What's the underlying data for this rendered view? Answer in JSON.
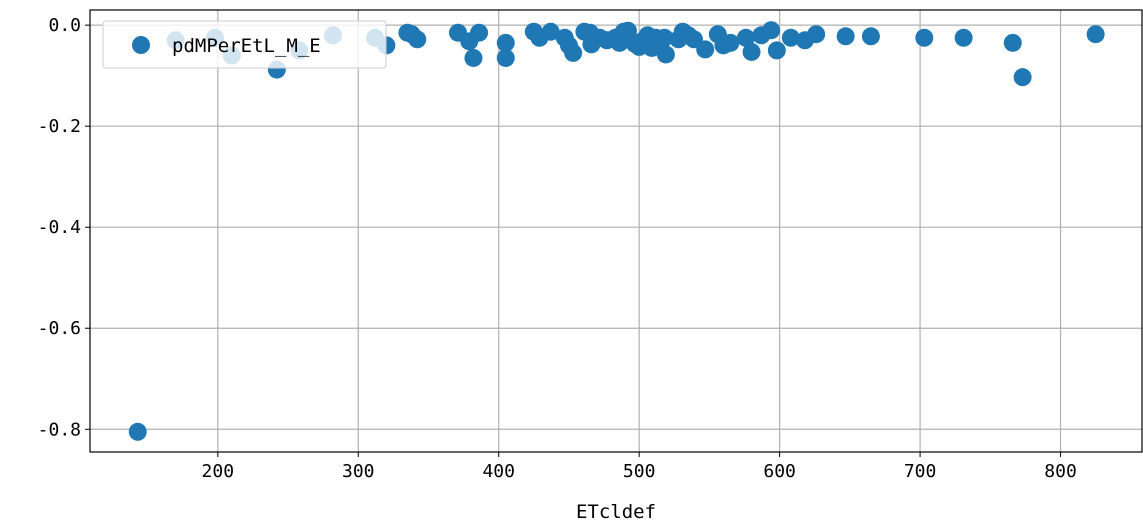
{
  "chart_data": {
    "type": "scatter",
    "xlabel": "ETcldef",
    "ylabel": "",
    "xlim": [
      109,
      858
    ],
    "ylim": [
      -0.845,
      0.03
    ],
    "xticks": [
      200,
      300,
      400,
      500,
      600,
      700,
      800
    ],
    "xtick_labels": [
      "200",
      "300",
      "400",
      "500",
      "600",
      "700",
      "800"
    ],
    "yticks": [
      0.0,
      -0.2,
      -0.4,
      -0.6,
      -0.8
    ],
    "ytick_labels": [
      "0.0",
      "-0.2",
      "-0.4",
      "-0.6",
      "-0.8"
    ],
    "grid": true,
    "legend_position": "top-left",
    "color": "#1f77b4",
    "series": [
      {
        "name": "pdMPerEtL_M_E",
        "points": [
          [
            143,
            -0.805
          ],
          [
            170,
            -0.03
          ],
          [
            198,
            -0.025
          ],
          [
            210,
            -0.06
          ],
          [
            242,
            -0.088
          ],
          [
            258,
            -0.05
          ],
          [
            282,
            -0.02
          ],
          [
            312,
            -0.025
          ],
          [
            320,
            -0.04
          ],
          [
            335,
            -0.015
          ],
          [
            338,
            -0.018
          ],
          [
            342,
            -0.028
          ],
          [
            371,
            -0.015
          ],
          [
            379,
            -0.032
          ],
          [
            382,
            -0.065
          ],
          [
            386,
            -0.015
          ],
          [
            405,
            -0.065
          ],
          [
            405,
            -0.035
          ],
          [
            425,
            -0.013
          ],
          [
            429,
            -0.025
          ],
          [
            437,
            -0.013
          ],
          [
            447,
            -0.025
          ],
          [
            450,
            -0.04
          ],
          [
            453,
            -0.055
          ],
          [
            461,
            -0.013
          ],
          [
            465,
            -0.015
          ],
          [
            466,
            -0.038
          ],
          [
            472,
            -0.025
          ],
          [
            477,
            -0.03
          ],
          [
            483,
            -0.025
          ],
          [
            486,
            -0.035
          ],
          [
            489,
            -0.013
          ],
          [
            492,
            -0.011
          ],
          [
            494,
            -0.03
          ],
          [
            497,
            -0.037
          ],
          [
            500,
            -0.043
          ],
          [
            503,
            -0.03
          ],
          [
            506,
            -0.02
          ],
          [
            509,
            -0.045
          ],
          [
            512,
            -0.025
          ],
          [
            515,
            -0.038
          ],
          [
            518,
            -0.025
          ],
          [
            519,
            -0.058
          ],
          [
            528,
            -0.028
          ],
          [
            531,
            -0.013
          ],
          [
            535,
            -0.02
          ],
          [
            539,
            -0.028
          ],
          [
            547,
            -0.048
          ],
          [
            556,
            -0.018
          ],
          [
            560,
            -0.04
          ],
          [
            565,
            -0.035
          ],
          [
            576,
            -0.025
          ],
          [
            580,
            -0.053
          ],
          [
            587,
            -0.02
          ],
          [
            594,
            -0.01
          ],
          [
            598,
            -0.05
          ],
          [
            608,
            -0.025
          ],
          [
            618,
            -0.03
          ],
          [
            626,
            -0.018
          ],
          [
            647,
            -0.022
          ],
          [
            665,
            -0.022
          ],
          [
            703,
            -0.025
          ],
          [
            731,
            -0.025
          ],
          [
            766,
            -0.035
          ],
          [
            773,
            -0.103
          ],
          [
            825,
            -0.018
          ]
        ]
      }
    ]
  }
}
